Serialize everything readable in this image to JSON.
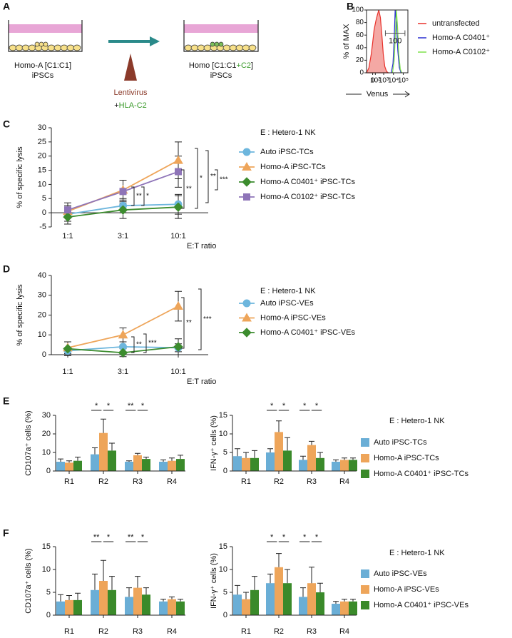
{
  "panel_labels": [
    "A",
    "B",
    "C",
    "D",
    "E",
    "F"
  ],
  "schematic": {
    "left_well": [
      "Homo-A [C1:C1]",
      "iPSCs"
    ],
    "vector": "Lentivirus",
    "insert_prefix": "+",
    "insert": "HLA-C2",
    "right_well": {
      "name_start": "Homo [C1:C1",
      "name_added": "+C2",
      "name_end": "]",
      "cells": "iPSCs"
    }
  },
  "chart_data": [
    {
      "type": "histogram-overlay",
      "y_label": "% of MAX",
      "x_label": "Venus",
      "xscale": "biexponential",
      "xlim": [
        -300,
        300000
      ],
      "ylim": [
        0,
        100
      ],
      "yticks": [
        0,
        20,
        40,
        60,
        80,
        100
      ],
      "xticks": [
        0,
        {
          "value": 100,
          "label": "10²"
        },
        {
          "value": 1000,
          "label": "10³"
        },
        {
          "value": 10000,
          "label": "10⁴"
        },
        {
          "value": 100000,
          "label": "10⁵"
        }
      ],
      "series": [
        {
          "name": "untransfected",
          "color": "#e8302a",
          "fill": "#f4a8a4",
          "x": [
            -300,
            -150,
            -50,
            0,
            50,
            120,
            200,
            300,
            450,
            650,
            900,
            1300,
            2000,
            3000
          ],
          "values": [
            0,
            8,
            30,
            48,
            68,
            82,
            92,
            100,
            88,
            60,
            30,
            10,
            2,
            0
          ]
        },
        {
          "name": "Homo-A C0401⁺",
          "color": "#2b2fd1",
          "x": [
            6000,
            9000,
            12000,
            15000,
            20000,
            28000,
            40000,
            60000
          ],
          "values": [
            0,
            15,
            55,
            100,
            80,
            35,
            8,
            0
          ]
        },
        {
          "name": "Homo-A C0102⁺",
          "color": "#7de04a",
          "x": [
            8000,
            12000,
            16000,
            20000,
            26000,
            35000,
            50000,
            70000
          ],
          "values": [
            0,
            20,
            65,
            100,
            75,
            30,
            6,
            0
          ]
        }
      ],
      "gate": {
        "range": [
          1500,
          150000
        ],
        "level": 63,
        "percent": 100
      }
    },
    {
      "type": "line",
      "legend_title": "E : Hetero-1 NK",
      "y_label": "% of specific lysis",
      "x_label": "E:T ratio",
      "categories": [
        "1:1",
        "3:1",
        "10:1"
      ],
      "ylim": [
        -5,
        30
      ],
      "yticks": [
        -5,
        0,
        5,
        10,
        15,
        20,
        25,
        30
      ],
      "series": [
        {
          "name": "Auto iPSC-TCs",
          "color": "#6db6dd",
          "marker": "circle",
          "values": [
            -0.5,
            2.5,
            3
          ],
          "errors": [
            2.5,
            2.5,
            3.5
          ]
        },
        {
          "name": "Homo-A iPSC-TCs",
          "color": "#eea55a",
          "marker": "triangle",
          "values": [
            0.5,
            8,
            18.5
          ],
          "errors": [
            2,
            3.5,
            6.5
          ]
        },
        {
          "name": "Homo-A C0401⁺ iPSC-TCs",
          "color": "#3c8c2e",
          "marker": "diamond",
          "values": [
            -1.5,
            1,
            2
          ],
          "errors": [
            2.5,
            3,
            4
          ]
        },
        {
          "name": "Homo-A C0102⁺ iPSC-TCs",
          "color": "#8e74b8",
          "marker": "square",
          "values": [
            1,
            7.5,
            14.5
          ],
          "errors": [
            2.5,
            4,
            5.5
          ]
        }
      ],
      "significance": [
        [],
        [
          "**",
          "*"
        ],
        [
          "**",
          "*",
          "**",
          "***"
        ]
      ]
    },
    {
      "type": "line",
      "legend_title": "E : Hetero-1 NK",
      "y_label": "% of specific lysis",
      "x_label": "E:T ratio",
      "categories": [
        "1:1",
        "3:1",
        "10:1"
      ],
      "ylim": [
        0,
        40
      ],
      "yticks": [
        0,
        10,
        20,
        30,
        40
      ],
      "series": [
        {
          "name": "Auto iPSC-VEs",
          "color": "#6db6dd",
          "marker": "circle",
          "values": [
            2,
            4,
            3.5
          ],
          "errors": [
            1.5,
            2.5,
            2
          ]
        },
        {
          "name": "Homo-A iPSC-VEs",
          "color": "#eea55a",
          "marker": "triangle",
          "values": [
            3.5,
            10,
            24.5
          ],
          "errors": [
            3,
            3.5,
            7.5
          ]
        },
        {
          "name": "Homo-A C0401⁺ iPSC-VEs",
          "color": "#3c8c2e",
          "marker": "diamond",
          "values": [
            3,
            1,
            4
          ],
          "errors": [
            3.5,
            2,
            4
          ]
        }
      ],
      "significance": [
        [],
        [
          "**",
          "***"
        ],
        [
          "**",
          "***"
        ]
      ]
    },
    {
      "type": "bar",
      "y_label": "CD107a⁺ cells (%)",
      "categories": [
        "R1",
        "R2",
        "R3",
        "R4"
      ],
      "ylim": [
        0,
        30
      ],
      "yticks": [
        0,
        10,
        20,
        30
      ],
      "series": [
        {
          "color": "#6aaed6",
          "values": [
            5,
            9,
            5,
            5
          ],
          "errors": [
            1.5,
            3.5,
            0.5,
            1
          ]
        },
        {
          "color": "#eea55a",
          "values": [
            4.5,
            20.5,
            8.5,
            5.5
          ],
          "errors": [
            1,
            7.5,
            1,
            1.5
          ]
        },
        {
          "color": "#3a8a2a",
          "values": [
            5.5,
            11,
            6.5,
            6.5
          ],
          "errors": [
            2,
            4,
            1,
            2
          ]
        }
      ],
      "significance": [
        [],
        [
          "*",
          "*"
        ],
        [
          "**",
          "*"
        ],
        []
      ]
    },
    {
      "type": "bar",
      "y_label": "IFN-γ⁺ cells (%)",
      "legend_title": "E : Hetero-1 NK",
      "categories": [
        "R1",
        "R2",
        "R3",
        "R4"
      ],
      "ylim": [
        0,
        15
      ],
      "yticks": [
        0,
        5,
        10,
        15
      ],
      "series": [
        {
          "name": "Auto iPSC-TCs",
          "color": "#6aaed6",
          "values": [
            4,
            5,
            3,
            2.5
          ],
          "errors": [
            2,
            1,
            1,
            0.5
          ]
        },
        {
          "name": "Homo-A iPSC-TCs",
          "color": "#eea55a",
          "values": [
            3.5,
            10.5,
            7,
            3
          ],
          "errors": [
            1.5,
            3,
            1,
            0.5
          ]
        },
        {
          "name": "Homo-A C0401⁺ iPSC-TCs",
          "color": "#3a8a2a",
          "values": [
            3.5,
            5.5,
            3.5,
            3
          ],
          "errors": [
            2,
            3.5,
            1.5,
            0.5
          ]
        }
      ],
      "significance": [
        [],
        [
          "*",
          "*"
        ],
        [
          "*",
          "*"
        ],
        []
      ]
    },
    {
      "type": "bar",
      "y_label": "CD107a⁺ cells (%)",
      "categories": [
        "R1",
        "R2",
        "R3",
        "R4"
      ],
      "ylim": [
        0,
        15
      ],
      "yticks": [
        0,
        5,
        10,
        15
      ],
      "series": [
        {
          "color": "#6aaed6",
          "values": [
            3,
            5.5,
            4,
            3
          ],
          "errors": [
            1.5,
            3.5,
            2,
            0.5
          ]
        },
        {
          "color": "#eea55a",
          "values": [
            3.3,
            7.5,
            6,
            3.5
          ],
          "errors": [
            1,
            4.5,
            2.5,
            0.5
          ]
        },
        {
          "color": "#3a8a2a",
          "values": [
            3.3,
            5.5,
            4.5,
            3
          ],
          "errors": [
            1.5,
            3,
            1.5,
            0.5
          ]
        }
      ],
      "significance": [
        [],
        [
          "**",
          "*"
        ],
        [
          "**",
          "*"
        ],
        []
      ]
    },
    {
      "type": "bar",
      "y_label": "IFN-γ⁺ cells (%)",
      "legend_title": "E : Hetero-1 NK",
      "categories": [
        "R1",
        "R2",
        "R3",
        "R4"
      ],
      "ylim": [
        0,
        15
      ],
      "yticks": [
        0,
        5,
        10,
        15
      ],
      "series": [
        {
          "name": "Auto iPSC-VEs",
          "color": "#6aaed6",
          "values": [
            4.5,
            7,
            4,
            2.5
          ],
          "errors": [
            2,
            2,
            2,
            0.5
          ]
        },
        {
          "name": "Homo-A iPSC-VEs",
          "color": "#eea55a",
          "values": [
            3.5,
            10.5,
            7,
            3
          ],
          "errors": [
            1.5,
            3,
            3.5,
            0.5
          ]
        },
        {
          "name": "Homo-A C0401⁺ iPSC-VEs",
          "color": "#3a8a2a",
          "values": [
            5.5,
            7,
            5,
            3
          ],
          "errors": [
            3,
            3,
            2,
            0.5
          ]
        }
      ],
      "significance": [
        [],
        [
          "*",
          "*"
        ],
        [
          "*",
          "*"
        ],
        []
      ]
    }
  ]
}
